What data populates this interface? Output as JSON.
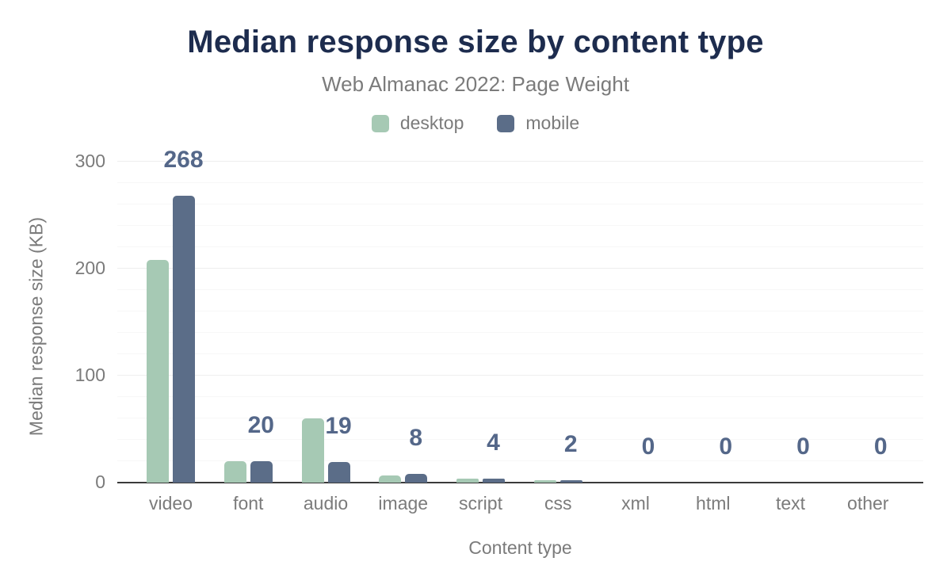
{
  "header": {
    "title": "Median response size by content type",
    "subtitle": "Web Almanac 2022: Page Weight"
  },
  "axes": {
    "x_title": "Content type",
    "y_title": "Median response size (KB)"
  },
  "colors": {
    "title": "#1d2c4e",
    "muted_text": "#7b7b7b",
    "value_label": "#546789",
    "axis_line": "#3b3b3b",
    "desktop": "#a6c9b4",
    "mobile": "#5b6d88"
  },
  "chart_data": {
    "type": "bar",
    "title": "Median response size by content type",
    "subtitle": "Web Almanac 2022: Page Weight",
    "categories": [
      "video",
      "font",
      "audio",
      "image",
      "script",
      "css",
      "xml",
      "html",
      "text",
      "other"
    ],
    "series": [
      {
        "name": "desktop",
        "color": "#a6c9b4",
        "values": [
          208,
          20,
          60,
          7,
          4,
          2,
          0,
          0,
          0,
          0
        ]
      },
      {
        "name": "mobile",
        "color": "#5b6d88",
        "values": [
          268,
          20,
          19,
          8,
          4,
          2,
          0,
          0,
          0,
          0
        ]
      }
    ],
    "data_labels": {
      "from_series": "mobile",
      "values": [
        268,
        20,
        19,
        8,
        4,
        2,
        0,
        0,
        0,
        0
      ],
      "color": "#546789"
    },
    "xlabel": "Content type",
    "ylabel": "Median response size (KB)",
    "ylim": [
      0,
      300
    ],
    "yticks": [
      0,
      100,
      200,
      300
    ],
    "minor_grid_step": 20,
    "grid": "on",
    "legend_position": "top",
    "legend": [
      "desktop",
      "mobile"
    ]
  }
}
